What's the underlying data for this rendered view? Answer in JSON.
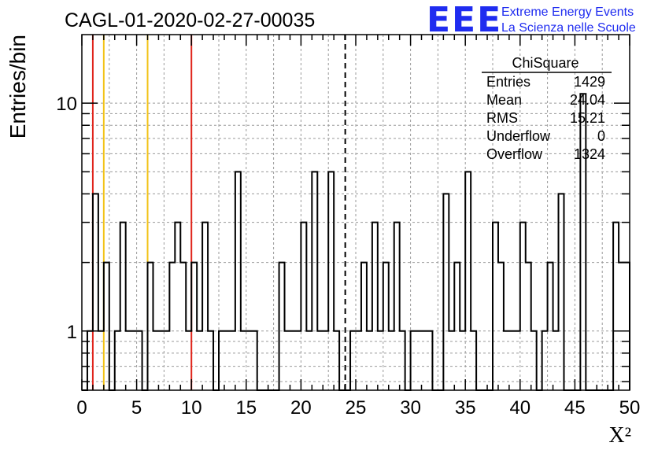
{
  "chart_data": {
    "type": "bar",
    "title": "CAGL-01-2020-02-27-00035",
    "xlabel": "X²",
    "ylabel": "Entries/bin",
    "xlim": [
      0,
      50
    ],
    "ylim": [
      0.55,
      20
    ],
    "y_scale": "log",
    "grid": true,
    "bin_width": 0.5,
    "x_ticks": [
      0,
      5,
      10,
      15,
      20,
      25,
      30,
      35,
      40,
      45,
      50
    ],
    "y_ticks": [
      1,
      10
    ],
    "bins": [
      [
        0.5,
        1
      ],
      [
        1.0,
        4
      ],
      [
        1.5,
        1
      ],
      [
        2.0,
        2
      ],
      [
        2.5,
        0
      ],
      [
        3.0,
        1
      ],
      [
        3.5,
        3
      ],
      [
        4.0,
        1
      ],
      [
        4.5,
        1
      ],
      [
        5.0,
        1
      ],
      [
        6.0,
        2
      ],
      [
        6.5,
        1
      ],
      [
        7.0,
        1
      ],
      [
        7.5,
        1
      ],
      [
        8.0,
        2
      ],
      [
        8.5,
        3
      ],
      [
        9.0,
        2
      ],
      [
        9.5,
        1
      ],
      [
        10.0,
        2
      ],
      [
        10.5,
        1
      ],
      [
        11.0,
        3
      ],
      [
        11.5,
        1
      ],
      [
        12.5,
        1
      ],
      [
        13.0,
        1
      ],
      [
        13.5,
        1
      ],
      [
        14.0,
        5
      ],
      [
        14.5,
        1
      ],
      [
        15.0,
        1
      ],
      [
        15.5,
        1
      ],
      [
        18.0,
        2
      ],
      [
        18.5,
        1
      ],
      [
        19.0,
        1
      ],
      [
        19.5,
        1
      ],
      [
        20.0,
        3
      ],
      [
        20.5,
        1
      ],
      [
        21.0,
        5
      ],
      [
        21.5,
        1
      ],
      [
        22.0,
        1
      ],
      [
        22.5,
        5
      ],
      [
        23.0,
        1
      ],
      [
        24.5,
        1
      ],
      [
        25.0,
        1
      ],
      [
        25.5,
        2
      ],
      [
        26.0,
        1
      ],
      [
        26.5,
        3
      ],
      [
        27.0,
        1
      ],
      [
        27.5,
        2
      ],
      [
        28.0,
        1
      ],
      [
        28.5,
        3
      ],
      [
        29.0,
        1
      ],
      [
        30.0,
        1
      ],
      [
        30.5,
        1
      ],
      [
        31.0,
        1
      ],
      [
        31.5,
        1
      ],
      [
        33.0,
        4
      ],
      [
        33.5,
        1
      ],
      [
        34.0,
        2
      ],
      [
        34.5,
        1
      ],
      [
        35.0,
        5
      ],
      [
        35.5,
        1
      ],
      [
        37.5,
        3
      ],
      [
        38.0,
        2
      ],
      [
        38.5,
        1
      ],
      [
        39.0,
        1
      ],
      [
        39.5,
        1
      ],
      [
        40.0,
        3
      ],
      [
        40.5,
        2
      ],
      [
        41.0,
        1
      ],
      [
        42.0,
        1
      ],
      [
        42.5,
        2
      ],
      [
        43.0,
        1
      ],
      [
        43.5,
        4
      ],
      [
        45.5,
        11
      ],
      [
        48.5,
        3
      ],
      [
        49.0,
        2
      ],
      [
        49.5,
        2
      ]
    ],
    "reference_lines": [
      {
        "x": 1,
        "color": "#e0241b",
        "style": "solid"
      },
      {
        "x": 2,
        "color": "#f2c318",
        "style": "solid"
      },
      {
        "x": 6,
        "color": "#f2c318",
        "style": "solid"
      },
      {
        "x": 10,
        "color": "#e0241b",
        "style": "solid"
      },
      {
        "x": 24.04,
        "color": "#000000",
        "style": "dashed"
      }
    ]
  },
  "stats_box": {
    "title": "ChiSquare",
    "rows": [
      {
        "label": "Entries",
        "value": "1429"
      },
      {
        "label": "Mean",
        "value": "24.04"
      },
      {
        "label": "RMS",
        "value": "15.21"
      },
      {
        "label": "Underflow",
        "value": "0"
      },
      {
        "label": "Overflow",
        "value": "1324"
      }
    ]
  },
  "logo": {
    "text": "EEE",
    "line1": "Extreme Energy Events",
    "line2": "La Scienza nelle Scuole",
    "color": "#1f2cf0"
  }
}
